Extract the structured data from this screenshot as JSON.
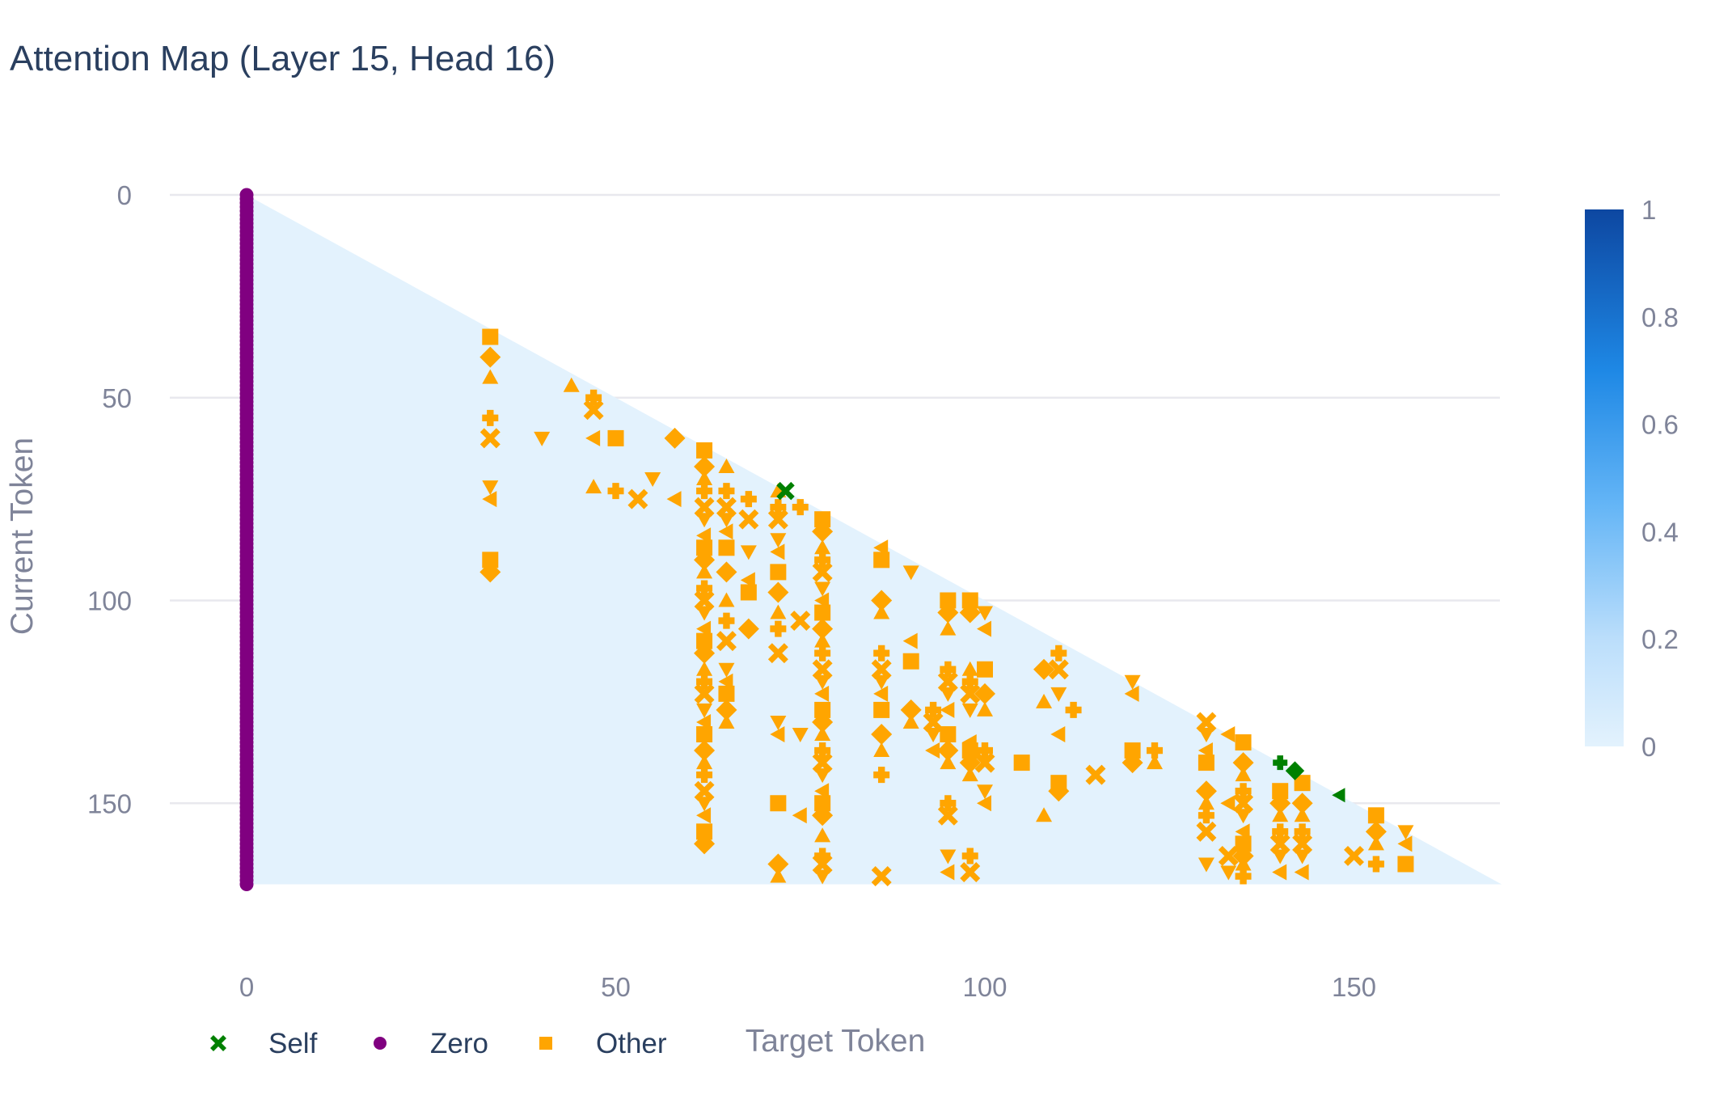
{
  "chart_data": {
    "type": "heatmap",
    "title": "Attention Map (Layer 15, Head 16)",
    "xlabel": "Target Token",
    "ylabel": "Current Token",
    "xlim": [
      0,
      170
    ],
    "ylim": [
      170,
      0
    ],
    "x_ticks": [
      "0",
      "50",
      "100",
      "150"
    ],
    "y_ticks": [
      "0",
      "50",
      "100",
      "150"
    ],
    "mask": "lower-triangular (causal)",
    "heatmap_base_value": 0.05,
    "colorscale": {
      "min": 0,
      "max": 1,
      "ticks": [
        "0",
        "0.2",
        "0.4",
        "0.6",
        "0.8",
        "1"
      ],
      "colors": [
        "#e3f2fd",
        "#bbdefb",
        "#64b5f6",
        "#1e88e5",
        "#0d47a1"
      ]
    },
    "legend": {
      "position": "bottom-left",
      "items": [
        {
          "name": "Self",
          "color": "#008000",
          "symbol": "x"
        },
        {
          "name": "Zero",
          "color": "#800080",
          "symbol": "circle"
        },
        {
          "name": "Other",
          "color": "#ffa500",
          "symbol": "square"
        }
      ]
    },
    "series": [
      {
        "name": "Self",
        "color": "#008000",
        "points": [
          [
            73,
            73
          ],
          [
            140,
            140
          ],
          [
            142,
            142
          ],
          [
            148,
            148
          ]
        ]
      },
      {
        "name": "Zero",
        "color": "#800080",
        "points": "x=0 for every current token 0-170"
      },
      {
        "name": "Other",
        "color": "#ffa500",
        "points": [
          [
            33,
            35
          ],
          [
            33,
            40
          ],
          [
            33,
            45
          ],
          [
            33,
            55
          ],
          [
            33,
            60
          ],
          [
            33,
            72
          ],
          [
            33,
            75
          ],
          [
            33,
            90
          ],
          [
            33,
            93
          ],
          [
            44,
            47
          ],
          [
            47,
            50
          ],
          [
            47,
            53
          ],
          [
            40,
            60
          ],
          [
            47,
            60
          ],
          [
            50,
            60
          ],
          [
            58,
            60
          ],
          [
            47,
            72
          ],
          [
            50,
            73
          ],
          [
            53,
            75
          ],
          [
            55,
            70
          ],
          [
            58,
            75
          ],
          [
            62,
            63
          ],
          [
            62,
            67
          ],
          [
            62,
            70
          ],
          [
            62,
            73
          ],
          [
            62,
            77
          ],
          [
            62,
            80
          ],
          [
            62,
            84
          ],
          [
            62,
            87
          ],
          [
            62,
            90
          ],
          [
            62,
            93
          ],
          [
            62,
            97
          ],
          [
            62,
            100
          ],
          [
            62,
            103
          ],
          [
            62,
            107
          ],
          [
            62,
            110
          ],
          [
            62,
            113
          ],
          [
            62,
            117
          ],
          [
            62,
            120
          ],
          [
            62,
            123
          ],
          [
            62,
            127
          ],
          [
            62,
            130
          ],
          [
            62,
            133
          ],
          [
            62,
            137
          ],
          [
            62,
            140
          ],
          [
            62,
            143
          ],
          [
            62,
            147
          ],
          [
            62,
            150
          ],
          [
            62,
            153
          ],
          [
            62,
            157
          ],
          [
            62,
            160
          ],
          [
            65,
            67
          ],
          [
            65,
            73
          ],
          [
            65,
            77
          ],
          [
            65,
            80
          ],
          [
            65,
            83
          ],
          [
            65,
            87
          ],
          [
            65,
            93
          ],
          [
            65,
            100
          ],
          [
            65,
            105
          ],
          [
            65,
            110
          ],
          [
            65,
            117
          ],
          [
            65,
            120
          ],
          [
            65,
            123
          ],
          [
            65,
            127
          ],
          [
            65,
            130
          ],
          [
            68,
            75
          ],
          [
            68,
            80
          ],
          [
            68,
            88
          ],
          [
            68,
            95
          ],
          [
            68,
            98
          ],
          [
            68,
            107
          ],
          [
            72,
            73
          ],
          [
            72,
            77
          ],
          [
            72,
            80
          ],
          [
            72,
            85
          ],
          [
            72,
            88
          ],
          [
            72,
            93
          ],
          [
            72,
            98
          ],
          [
            72,
            103
          ],
          [
            72,
            107
          ],
          [
            72,
            113
          ],
          [
            72,
            130
          ],
          [
            72,
            133
          ],
          [
            72,
            150
          ],
          [
            72,
            165
          ],
          [
            72,
            168
          ],
          [
            75,
            77
          ],
          [
            75,
            105
          ],
          [
            75,
            133
          ],
          [
            75,
            153
          ],
          [
            78,
            80
          ],
          [
            78,
            83
          ],
          [
            78,
            87
          ],
          [
            78,
            90
          ],
          [
            78,
            93
          ],
          [
            78,
            97
          ],
          [
            78,
            100
          ],
          [
            78,
            103
          ],
          [
            78,
            107
          ],
          [
            78,
            110
          ],
          [
            78,
            113
          ],
          [
            78,
            117
          ],
          [
            78,
            120
          ],
          [
            78,
            123
          ],
          [
            78,
            127
          ],
          [
            78,
            130
          ],
          [
            78,
            133
          ],
          [
            78,
            137
          ],
          [
            78,
            140
          ],
          [
            78,
            143
          ],
          [
            78,
            147
          ],
          [
            78,
            150
          ],
          [
            78,
            153
          ],
          [
            78,
            158
          ],
          [
            78,
            163
          ],
          [
            78,
            165
          ],
          [
            78,
            168
          ],
          [
            86,
            87
          ],
          [
            86,
            90
          ],
          [
            86,
            100
          ],
          [
            86,
            103
          ],
          [
            86,
            113
          ],
          [
            86,
            117
          ],
          [
            86,
            120
          ],
          [
            86,
            123
          ],
          [
            86,
            127
          ],
          [
            86,
            133
          ],
          [
            86,
            137
          ],
          [
            86,
            143
          ],
          [
            86,
            168
          ],
          [
            90,
            93
          ],
          [
            90,
            110
          ],
          [
            90,
            115
          ],
          [
            90,
            127
          ],
          [
            90,
            130
          ],
          [
            93,
            127
          ],
          [
            93,
            130
          ],
          [
            93,
            133
          ],
          [
            93,
            137
          ],
          [
            95,
            100
          ],
          [
            95,
            103
          ],
          [
            95,
            107
          ],
          [
            95,
            117
          ],
          [
            95,
            120
          ],
          [
            95,
            123
          ],
          [
            95,
            127
          ],
          [
            95,
            133
          ],
          [
            95,
            137
          ],
          [
            95,
            140
          ],
          [
            95,
            150
          ],
          [
            95,
            153
          ],
          [
            95,
            163
          ],
          [
            95,
            167
          ],
          [
            98,
            100
          ],
          [
            98,
            103
          ],
          [
            98,
            117
          ],
          [
            98,
            120
          ],
          [
            98,
            123
          ],
          [
            98,
            127
          ],
          [
            98,
            135
          ],
          [
            98,
            137
          ],
          [
            98,
            140
          ],
          [
            98,
            143
          ],
          [
            98,
            163
          ],
          [
            98,
            167
          ],
          [
            100,
            103
          ],
          [
            100,
            107
          ],
          [
            100,
            117
          ],
          [
            100,
            123
          ],
          [
            100,
            127
          ],
          [
            100,
            137
          ],
          [
            100,
            140
          ],
          [
            100,
            147
          ],
          [
            100,
            150
          ],
          [
            105,
            140
          ],
          [
            108,
            117
          ],
          [
            108,
            125
          ],
          [
            110,
            113
          ],
          [
            110,
            117
          ],
          [
            110,
            123
          ],
          [
            110,
            133
          ],
          [
            110,
            145
          ],
          [
            110,
            147
          ],
          [
            108,
            153
          ],
          [
            112,
            127
          ],
          [
            115,
            143
          ],
          [
            120,
            120
          ],
          [
            120,
            123
          ],
          [
            120,
            137
          ],
          [
            120,
            140
          ],
          [
            123,
            140
          ],
          [
            123,
            137
          ],
          [
            130,
            130
          ],
          [
            130,
            133
          ],
          [
            130,
            137
          ],
          [
            130,
            140
          ],
          [
            130,
            147
          ],
          [
            130,
            150
          ],
          [
            130,
            153
          ],
          [
            130,
            157
          ],
          [
            130,
            165
          ],
          [
            133,
            133
          ],
          [
            135,
            135
          ],
          [
            135,
            140
          ],
          [
            135,
            143
          ],
          [
            135,
            147
          ],
          [
            135,
            150
          ],
          [
            135,
            153
          ],
          [
            135,
            157
          ],
          [
            135,
            160
          ],
          [
            135,
            163
          ],
          [
            135,
            165
          ],
          [
            135,
            168
          ],
          [
            133,
            163
          ],
          [
            133,
            167
          ],
          [
            133,
            150
          ],
          [
            140,
            147
          ],
          [
            140,
            150
          ],
          [
            140,
            153
          ],
          [
            140,
            157
          ],
          [
            140,
            160
          ],
          [
            140,
            163
          ],
          [
            140,
            167
          ],
          [
            143,
            145
          ],
          [
            143,
            150
          ],
          [
            143,
            153
          ],
          [
            143,
            157
          ],
          [
            143,
            160
          ],
          [
            143,
            163
          ],
          [
            143,
            167
          ],
          [
            153,
            153
          ],
          [
            153,
            157
          ],
          [
            153,
            160
          ],
          [
            153,
            165
          ],
          [
            150,
            163
          ],
          [
            157,
            157
          ],
          [
            157,
            160
          ],
          [
            157,
            165
          ]
        ]
      }
    ]
  }
}
